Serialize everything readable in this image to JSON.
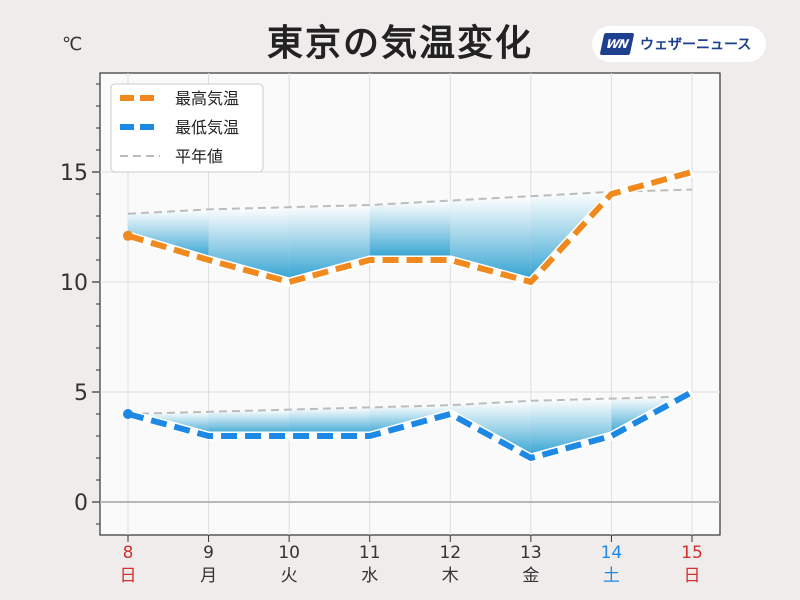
{
  "brand": {
    "logo": "WN",
    "name": "ウェザーニュース"
  },
  "chart_data": {
    "type": "line",
    "title": "東京の気温変化",
    "ylabel": "℃",
    "ylim": [
      -1.5,
      19.5
    ],
    "y_ticks": [
      0,
      5,
      10,
      15
    ],
    "x": [
      "8",
      "9",
      "10",
      "11",
      "12",
      "13",
      "14",
      "15"
    ],
    "x_weekdays": [
      "日",
      "月",
      "火",
      "水",
      "木",
      "金",
      "土",
      "日"
    ],
    "x_day_types": [
      "holiday",
      "weekday",
      "weekday",
      "weekday",
      "weekday",
      "weekday",
      "saturday",
      "holiday"
    ],
    "grid": true,
    "legend_position": "top-left",
    "series": [
      {
        "name": "最高気温",
        "values": [
          12.1,
          11.0,
          10.0,
          11.0,
          11.0,
          10.0,
          14.0,
          15.0
        ],
        "color": "#f08a1e",
        "style": "dashed-thick"
      },
      {
        "name": "最低気温",
        "values": [
          4.0,
          3.0,
          3.0,
          3.0,
          4.0,
          2.0,
          3.0,
          5.0
        ],
        "color": "#1e88e5",
        "style": "dashed-thick"
      },
      {
        "name": "平年値",
        "values": [
          13.1,
          13.3,
          13.4,
          13.5,
          13.7,
          13.9,
          14.1,
          14.2
        ],
        "color": "#bcbcbc",
        "style": "dashed-thin"
      },
      {
        "name": "平年値(最低)",
        "values": [
          4.0,
          4.1,
          4.2,
          4.3,
          4.4,
          4.6,
          4.7,
          4.8
        ],
        "color": "#bcbcbc",
        "style": "dashed-thin",
        "in_legend": false
      }
    ],
    "colors": {
      "holiday": "#d32f2f",
      "saturday": "#1e88e5",
      "weekday": "#333333",
      "zero_line": "#b8b8b8"
    }
  }
}
